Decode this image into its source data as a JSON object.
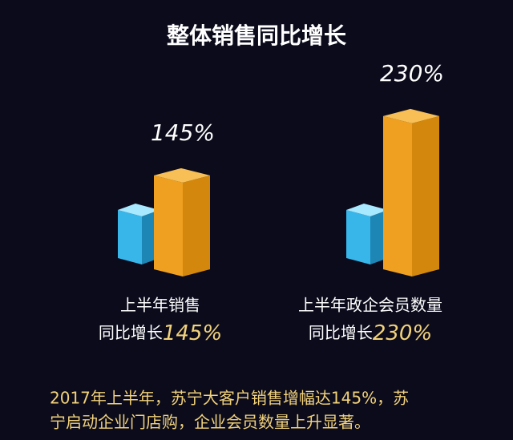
{
  "chart_data": {
    "type": "bar",
    "title": "整体销售同比增长",
    "categories": [
      "上半年销售",
      "上半年政企会员数量"
    ],
    "sublabels": [
      "同比增长",
      "同比增长"
    ],
    "values": [
      145,
      230
    ],
    "value_labels": [
      "145%",
      "230%"
    ],
    "color": "#f0a020"
  },
  "footer": [
    "2017年上半年，苏宁大客户销售增幅达145%，苏",
    "宁启动企业门店购，企业会员数量上升显著。"
  ]
}
